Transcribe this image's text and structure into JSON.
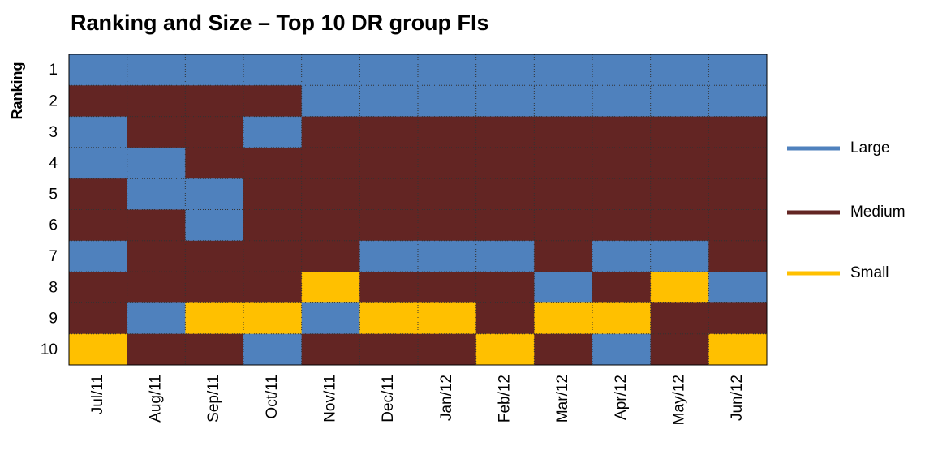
{
  "chart_data": {
    "type": "heatmap",
    "title": "Ranking and Size – Top 10 DR group FIs",
    "y_label": "Ranking",
    "categories": [
      "Jul/11",
      "Aug/11",
      "Sep/11",
      "Oct/11",
      "Nov/11",
      "Dec/11",
      "Jan/12",
      "Feb/12",
      "Mar/12",
      "Apr/12",
      "May/12",
      "Jun/12"
    ],
    "rows": [
      1,
      2,
      3,
      4,
      5,
      6,
      7,
      8,
      9,
      10
    ],
    "series": [
      {
        "name": "Large",
        "color": "#4f81bd"
      },
      {
        "name": "Medium",
        "color": "#632523"
      },
      {
        "name": "Small",
        "color": "#ffc000"
      }
    ],
    "values": [
      [
        "Large",
        "Large",
        "Large",
        "Large",
        "Large",
        "Large",
        "Large",
        "Large",
        "Large",
        "Large",
        "Large",
        "Large"
      ],
      [
        "Medium",
        "Medium",
        "Medium",
        "Medium",
        "Large",
        "Large",
        "Large",
        "Large",
        "Large",
        "Large",
        "Large",
        "Large"
      ],
      [
        "Large",
        "Medium",
        "Medium",
        "Large",
        "Medium",
        "Medium",
        "Medium",
        "Medium",
        "Medium",
        "Medium",
        "Medium",
        "Medium"
      ],
      [
        "Large",
        "Large",
        "Medium",
        "Medium",
        "Medium",
        "Medium",
        "Medium",
        "Medium",
        "Medium",
        "Medium",
        "Medium",
        "Medium"
      ],
      [
        "Medium",
        "Large",
        "Large",
        "Medium",
        "Medium",
        "Medium",
        "Medium",
        "Medium",
        "Medium",
        "Medium",
        "Medium",
        "Medium"
      ],
      [
        "Medium",
        "Medium",
        "Large",
        "Medium",
        "Medium",
        "Medium",
        "Medium",
        "Medium",
        "Medium",
        "Medium",
        "Medium",
        "Medium"
      ],
      [
        "Large",
        "Medium",
        "Medium",
        "Medium",
        "Medium",
        "Large",
        "Large",
        "Large",
        "Medium",
        "Large",
        "Large",
        "Medium"
      ],
      [
        "Medium",
        "Medium",
        "Medium",
        "Medium",
        "Small",
        "Medium",
        "Medium",
        "Medium",
        "Large",
        "Medium",
        "Small",
        "Large"
      ],
      [
        "Medium",
        "Large",
        "Small",
        "Small",
        "Large",
        "Small",
        "Small",
        "Medium",
        "Small",
        "Small",
        "Medium",
        "Medium"
      ],
      [
        "Small",
        "Medium",
        "Medium",
        "Large",
        "Medium",
        "Medium",
        "Medium",
        "Small",
        "Medium",
        "Large",
        "Medium",
        "Small"
      ]
    ],
    "legend": "right"
  }
}
